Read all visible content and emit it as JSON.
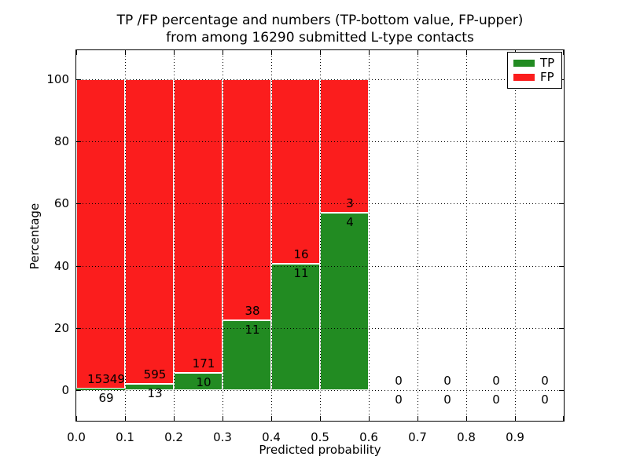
{
  "figure": {
    "title_line1": "TP /FP percentage and numbers (TP-bottom value, FP-upper)",
    "title_line2": "from among 16290 submitted L-type contacts",
    "xlabel": "Predicted probability",
    "ylabel": "Percentage"
  },
  "legend": {
    "items": [
      {
        "label": "TP",
        "color_key": "tp"
      },
      {
        "label": "FP",
        "color_key": "fp"
      }
    ]
  },
  "colors": {
    "tp": "#228b22",
    "fp": "#fb1d1d",
    "bar_edge": "#ffffff",
    "grid": "#000000",
    "text": "#000000"
  },
  "chart_data": {
    "type": "bar",
    "variant": "stacked-percentage",
    "title": "TP /FP percentage and numbers (TP-bottom value, FP-upper)\nfrom among 16290 submitted L-type contacts",
    "xlabel": "Predicted probability",
    "ylabel": "Percentage",
    "total_submitted": 16290,
    "bin_starts": [
      0.0,
      0.1,
      0.2,
      0.3,
      0.4,
      0.5,
      0.6,
      0.7,
      0.8,
      0.9
    ],
    "bin_width": 0.1,
    "series": [
      {
        "name": "TP",
        "counts": [
          69,
          13,
          10,
          11,
          11,
          4,
          0,
          0,
          0,
          0
        ]
      },
      {
        "name": "FP",
        "counts": [
          15349,
          595,
          171,
          38,
          16,
          3,
          0,
          0,
          0,
          0
        ]
      }
    ],
    "bars_fill_to_percent": 100,
    "xtick_labels": [
      "0.0",
      "0.1",
      "0.2",
      "0.3",
      "0.4",
      "0.5",
      "0.6",
      "0.7",
      "0.8",
      "0.9"
    ],
    "ytick_values": [
      0,
      20,
      40,
      60,
      80,
      100
    ],
    "xlim": [
      0.0,
      1.0
    ],
    "ylim": [
      -9.8,
      109.3
    ],
    "grid": "dotted",
    "legend_position": "upper right"
  }
}
